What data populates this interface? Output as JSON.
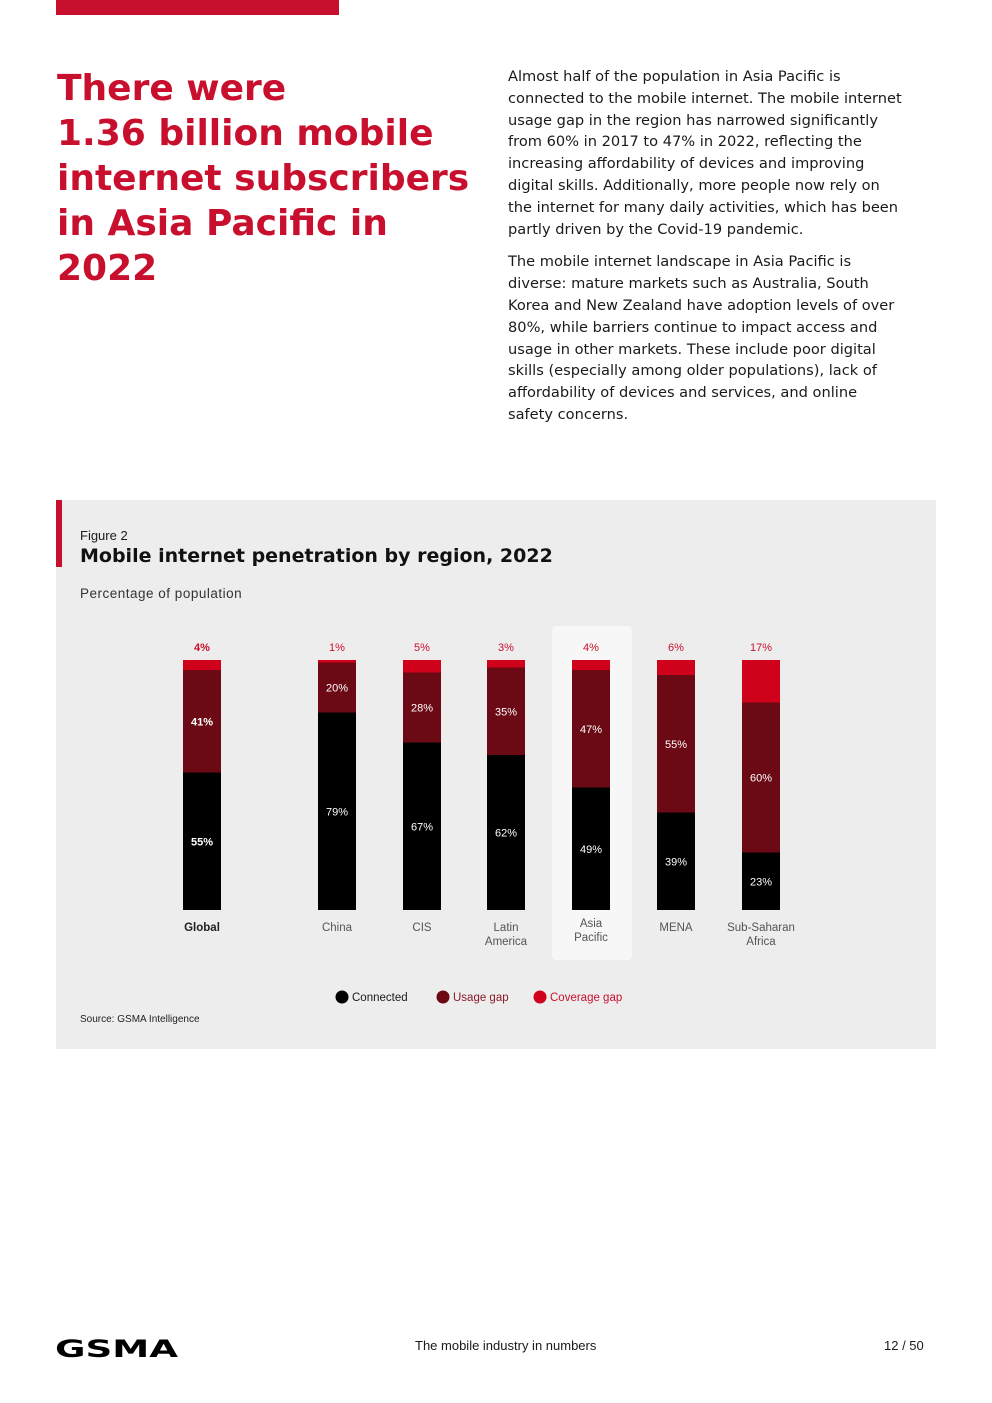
{
  "headline": {
    "lines": [
      "There were",
      "1.36 billion mobile",
      "internet subscribers",
      "in Asia Pacific in",
      "2022"
    ]
  },
  "intro": {
    "paragraphs": [
      [
        "Almost half of the population in Asia Pacific is",
        "connected to the mobile internet. The mobile internet",
        "usage gap in the region has narrowed significantly",
        "from 60% in 2017 to 47% in 2022, reflecting the",
        "increasing affordability of devices and improving",
        "digital skills. Additionally, more people now rely on",
        "the internet for many daily activities, which has been",
        "partly driven by the Covid-19 pandemic."
      ],
      [
        "The mobile internet landscape in Asia Pacific is",
        "diverse: mature markets such as Australia, South",
        "Korea and New Zealand have adoption levels of over",
        "80%, while barriers continue to impact access and",
        "usage in other markets. These include poor digital",
        "skills (especially among older populations), lack of",
        "affordability of devices and services, and online",
        "safety concerns."
      ]
    ]
  },
  "figure": {
    "label": "Figure 2",
    "source": "Source: GSMA Intelligence"
  },
  "chart_data": {
    "type": "bar",
    "stacked": true,
    "title": "Mobile internet penetration by region, 2022",
    "ylabel": "Percentage of population",
    "ylim": [
      0,
      100
    ],
    "grid": false,
    "legend_position": "bottom-center",
    "categories": [
      "Global",
      "China",
      "CIS",
      "Latin America",
      "Asia Pacific",
      "MENA",
      "Sub-Saharan Africa"
    ],
    "highlight_category": "Asia Pacific",
    "series": [
      {
        "name": "Connected",
        "color": "#000000",
        "values": [
          55,
          79,
          67,
          62,
          49,
          39,
          23
        ],
        "labels": [
          "55%",
          "79%",
          "67%",
          "62%",
          "49%",
          "39%",
          "23%"
        ]
      },
      {
        "name": "Usage gap",
        "color": "#6b0a14",
        "values": [
          41,
          20,
          28,
          35,
          47,
          55,
          60
        ],
        "labels": [
          "41%",
          "20%",
          "28%",
          "35%",
          "47%",
          "55%",
          "60%"
        ]
      },
      {
        "name": "Coverage gap",
        "color": "#d0021b",
        "values": [
          4,
          1,
          5,
          3,
          4,
          6,
          17
        ],
        "labels": [
          "4%",
          "1%",
          "5%",
          "3%",
          "4%",
          "6%",
          "17%"
        ]
      }
    ]
  },
  "colors": {
    "brand_red": "#c8102e",
    "usage_gap_label": "#8b1a2a",
    "coverage_label": "#c8102e",
    "panel_bg": "#ededed",
    "highlight_bg": "#f7f7f7"
  },
  "footer": {
    "logo": "GSMA",
    "title": "The mobile industry in numbers",
    "page": "12 / 50"
  }
}
